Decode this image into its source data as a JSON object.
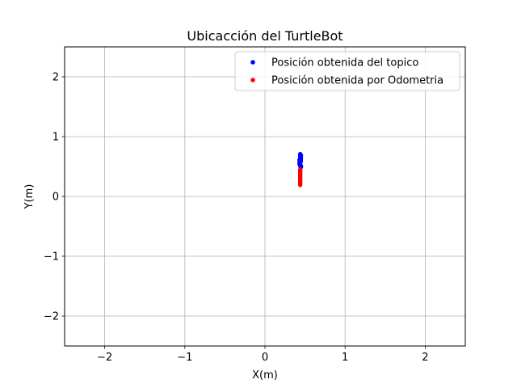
{
  "chart_data": {
    "type": "scatter",
    "title": "Ubicacción del TurtleBot",
    "xlabel": "X(m)",
    "ylabel": "Y(m)",
    "xlim": [
      -2.5,
      2.5
    ],
    "ylim": [
      -2.5,
      2.5
    ],
    "xticks": [
      -2,
      -1,
      0,
      1,
      2
    ],
    "yticks": [
      -2,
      -1,
      0,
      1,
      2
    ],
    "xtick_labels": [
      "−2",
      "−1",
      "0",
      "1",
      "2"
    ],
    "ytick_labels": [
      "−2",
      "−1",
      "0",
      "1",
      "2"
    ],
    "grid": true,
    "legend_position": "top-right",
    "series": [
      {
        "name": "Posición obtenida del topico",
        "color": "#0000ff",
        "points": [
          {
            "x": 0.44,
            "y": 0.71
          },
          {
            "x": 0.44,
            "y": 0.7
          },
          {
            "x": 0.45,
            "y": 0.69
          },
          {
            "x": 0.44,
            "y": 0.68
          },
          {
            "x": 0.44,
            "y": 0.67
          },
          {
            "x": 0.45,
            "y": 0.66
          },
          {
            "x": 0.44,
            "y": 0.65
          },
          {
            "x": 0.44,
            "y": 0.64
          },
          {
            "x": 0.45,
            "y": 0.63
          },
          {
            "x": 0.44,
            "y": 0.62
          },
          {
            "x": 0.43,
            "y": 0.61
          },
          {
            "x": 0.44,
            "y": 0.6
          },
          {
            "x": 0.45,
            "y": 0.59
          },
          {
            "x": 0.44,
            "y": 0.58
          },
          {
            "x": 0.43,
            "y": 0.57
          },
          {
            "x": 0.44,
            "y": 0.56
          },
          {
            "x": 0.44,
            "y": 0.55
          },
          {
            "x": 0.43,
            "y": 0.54
          },
          {
            "x": 0.44,
            "y": 0.53
          },
          {
            "x": 0.44,
            "y": 0.52
          },
          {
            "x": 0.45,
            "y": 0.51
          },
          {
            "x": 0.44,
            "y": 0.5
          },
          {
            "x": 0.45,
            "y": 0.49
          }
        ]
      },
      {
        "name": "Posición obtenida por Odometria",
        "color": "#ff0000",
        "points": [
          {
            "x": 0.44,
            "y": 0.45
          },
          {
            "x": 0.44,
            "y": 0.44
          },
          {
            "x": 0.44,
            "y": 0.43
          },
          {
            "x": 0.44,
            "y": 0.42
          },
          {
            "x": 0.44,
            "y": 0.41
          },
          {
            "x": 0.44,
            "y": 0.4
          },
          {
            "x": 0.44,
            "y": 0.39
          },
          {
            "x": 0.44,
            "y": 0.38
          },
          {
            "x": 0.44,
            "y": 0.37
          },
          {
            "x": 0.44,
            "y": 0.36
          },
          {
            "x": 0.44,
            "y": 0.35
          },
          {
            "x": 0.44,
            "y": 0.34
          },
          {
            "x": 0.44,
            "y": 0.33
          },
          {
            "x": 0.44,
            "y": 0.32
          },
          {
            "x": 0.44,
            "y": 0.31
          },
          {
            "x": 0.44,
            "y": 0.3
          },
          {
            "x": 0.44,
            "y": 0.29
          },
          {
            "x": 0.44,
            "y": 0.28
          },
          {
            "x": 0.44,
            "y": 0.27
          },
          {
            "x": 0.44,
            "y": 0.26
          },
          {
            "x": 0.44,
            "y": 0.25
          },
          {
            "x": 0.44,
            "y": 0.24
          },
          {
            "x": 0.44,
            "y": 0.23
          },
          {
            "x": 0.44,
            "y": 0.22
          },
          {
            "x": 0.44,
            "y": 0.21
          },
          {
            "x": 0.44,
            "y": 0.2
          },
          {
            "x": 0.44,
            "y": 0.19
          }
        ]
      }
    ]
  }
}
